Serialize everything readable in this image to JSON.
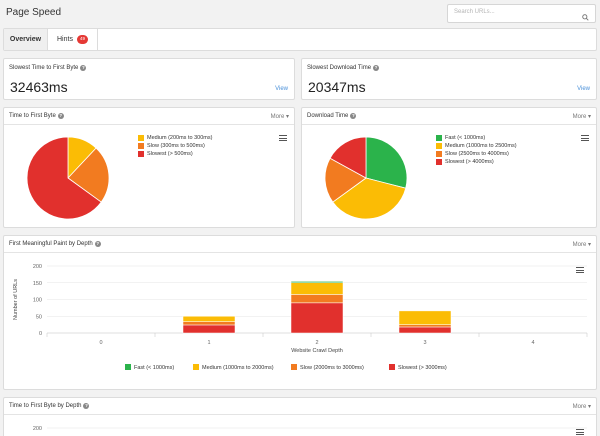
{
  "header": {
    "title": "Page Speed",
    "search_placeholder": "Search URLs..."
  },
  "tabs": [
    {
      "label": "Overview",
      "active": true
    },
    {
      "label": "Hints",
      "badge": "49"
    }
  ],
  "stats": [
    {
      "title": "Slowest Time to First Byte",
      "value": "32463ms",
      "link": "View"
    },
    {
      "title": "Slowest Download Time",
      "value": "20347ms",
      "link": "View"
    }
  ],
  "more_label": "More",
  "colors": {
    "fast": "#2bb34b",
    "medium": "#fbbc05",
    "slow": "#f27b20",
    "slowest": "#e1302d",
    "link": "#4a90d9"
  },
  "chart_data": [
    {
      "type": "pie",
      "title": "Time to First Byte",
      "series": [
        {
          "name": "Medium (200ms to 300ms)",
          "value": 12,
          "color": "#fbbc05"
        },
        {
          "name": "Slow (300ms to 500ms)",
          "value": 23,
          "color": "#f27b20"
        },
        {
          "name": "Slowest (> 500ms)",
          "value": 65,
          "color": "#e1302d"
        }
      ]
    },
    {
      "type": "pie",
      "title": "Download Time",
      "series": [
        {
          "name": "Fast (< 1000ms)",
          "value": 29,
          "color": "#2bb34b"
        },
        {
          "name": "Medium (1000ms to 2500ms)",
          "value": 36,
          "color": "#fbbc05"
        },
        {
          "name": "Slow (2500ms to 4000ms)",
          "value": 18,
          "color": "#f27b20"
        },
        {
          "name": "Slowest (> 4000ms)",
          "value": 17,
          "color": "#e1302d"
        }
      ]
    },
    {
      "type": "bar",
      "stacked": true,
      "title": "First Meaningful Paint by Depth",
      "xlabel": "Website Crawl Depth",
      "ylabel": "Number of URLs",
      "categories": [
        "0",
        "1",
        "2",
        "3",
        "4"
      ],
      "yticks": [
        0,
        50,
        100,
        150,
        200
      ],
      "ylim": [
        0,
        200
      ],
      "series": [
        {
          "name": "Slowest (> 3000ms)",
          "color": "#e1302d",
          "values": [
            0,
            24,
            90,
            18,
            0
          ]
        },
        {
          "name": "Slow (2000ms to 3000ms)",
          "color": "#f27b20",
          "values": [
            0,
            10,
            25,
            7,
            0
          ]
        },
        {
          "name": "Medium (1000ms to 2000ms)",
          "color": "#fbbc05",
          "values": [
            0,
            16,
            35,
            41,
            0
          ]
        },
        {
          "name": "Fast (< 1000ms)",
          "color": "#2bb34b",
          "values": [
            0,
            0,
            4,
            0,
            0
          ]
        }
      ],
      "legend": [
        "Fast (< 1000ms)",
        "Medium (1000ms to 2000ms)",
        "Slow (2000ms to 3000ms)",
        "Slowest (> 3000ms)"
      ]
    },
    {
      "type": "bar",
      "title": "Time to First Byte by Depth",
      "yticks": [
        200
      ]
    }
  ]
}
